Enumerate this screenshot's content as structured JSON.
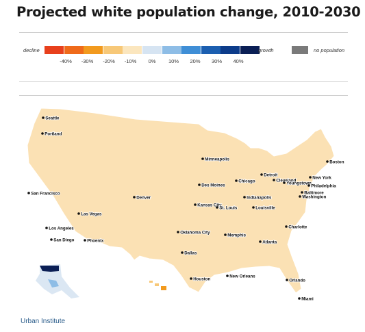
{
  "title": "Projected white population change, 2010-2030",
  "legend": {
    "decline_label": "decline",
    "growth_label": "growth",
    "nopop_label": "no population",
    "swatches": [
      "#e8401c",
      "#ef6a1a",
      "#f29a1e",
      "#f7c878",
      "#fbe6be",
      "#d6e4f2",
      "#8ebde6",
      "#3f8ed6",
      "#1c5fb0",
      "#0d3c8a",
      "#0b1f55"
    ],
    "nopop_color": "#7a7a7a",
    "ticks": [
      "-40%",
      "-30%",
      "-20%",
      "-10%",
      "0%",
      "10%",
      "20%",
      "30%",
      "40%"
    ]
  },
  "map": {
    "cities": [
      {
        "name": "Seattle"
      },
      {
        "name": "Portland"
      },
      {
        "name": "San Francisco"
      },
      {
        "name": "Las Vegas"
      },
      {
        "name": "Los Angeles"
      },
      {
        "name": "San Diego"
      },
      {
        "name": "Phoenix"
      },
      {
        "name": "Denver"
      },
      {
        "name": "Minneapolis"
      },
      {
        "name": "Des Moines"
      },
      {
        "name": "Chicago"
      },
      {
        "name": "Detroit"
      },
      {
        "name": "Cleveland"
      },
      {
        "name": "Youngstown"
      },
      {
        "name": "Boston"
      },
      {
        "name": "New York"
      },
      {
        "name": "Philadelphia"
      },
      {
        "name": "Baltimore"
      },
      {
        "name": "Washington"
      },
      {
        "name": "Kansas City"
      },
      {
        "name": "St. Louis"
      },
      {
        "name": "Louisville"
      },
      {
        "name": "Indianapolis"
      },
      {
        "name": "Oklahoma City"
      },
      {
        "name": "Memphis"
      },
      {
        "name": "Charlotte"
      },
      {
        "name": "Atlanta"
      },
      {
        "name": "Dallas"
      },
      {
        "name": "Houston"
      },
      {
        "name": "New Orleans"
      },
      {
        "name": "Orlando"
      },
      {
        "name": "Miami"
      }
    ]
  },
  "source": "Urban Institute"
}
